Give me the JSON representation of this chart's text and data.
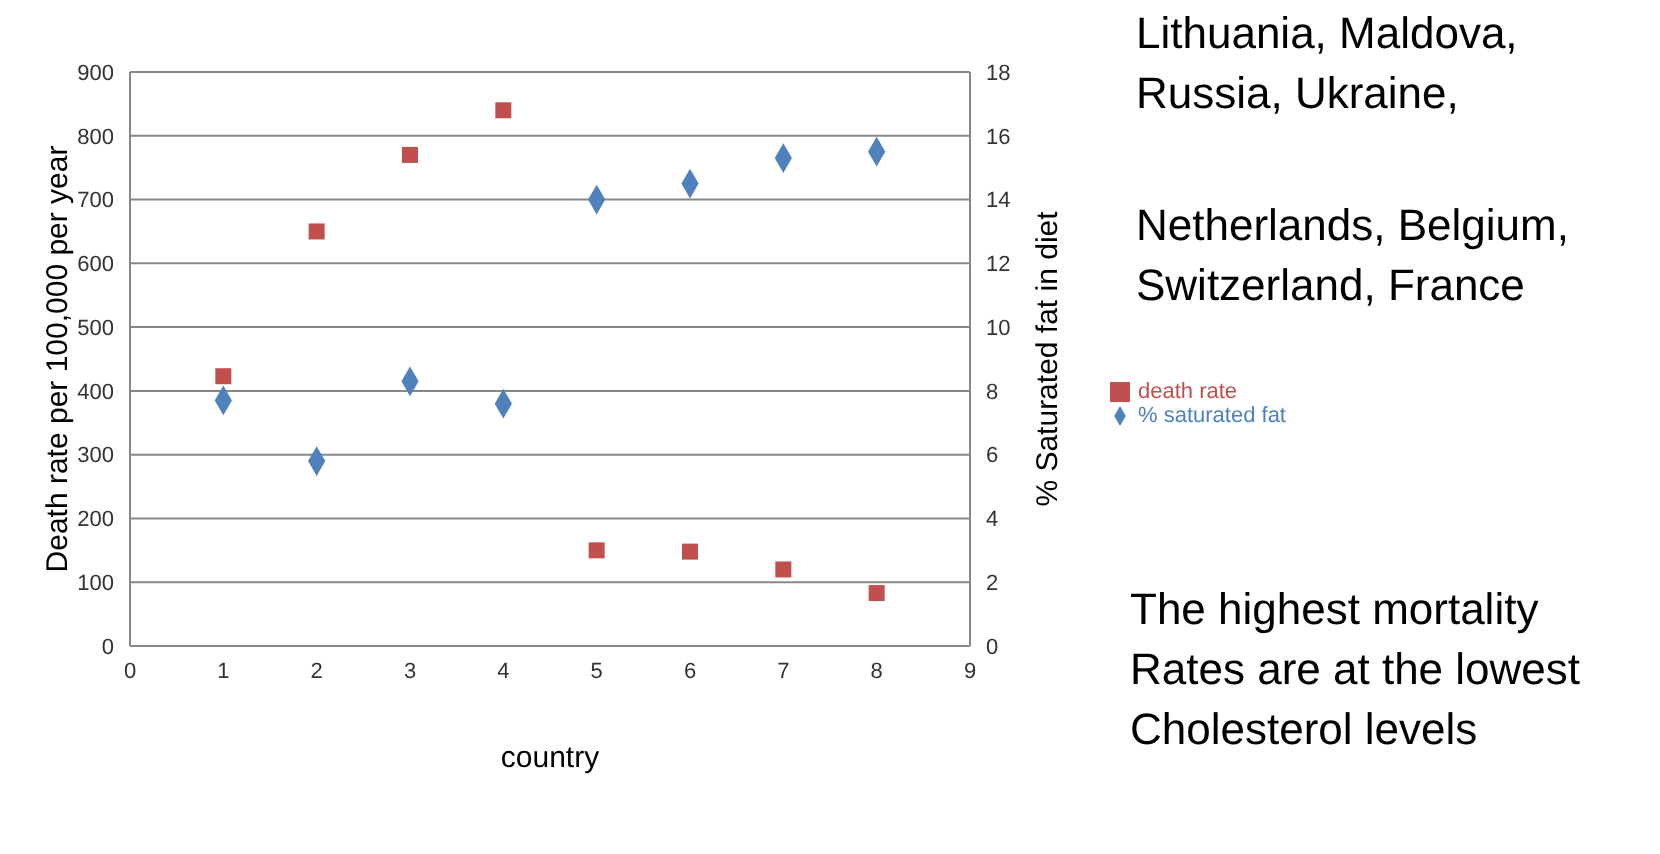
{
  "chart_data": {
    "type": "scatter",
    "xlabel": "country",
    "ylabel": "Death rate per 100,000 per year",
    "y2label": "% Saturated fat in diet",
    "x": [
      1,
      2,
      3,
      4,
      5,
      6,
      7,
      8
    ],
    "series": [
      {
        "name": "death rate",
        "color": "#c0504d",
        "marker": "square",
        "values": [
          423,
          650,
          770,
          840,
          150,
          148,
          120,
          83
        ]
      },
      {
        "name": "% saturated fat",
        "color": "#4f81bd",
        "marker": "diamond",
        "axis": "y2",
        "values": [
          7.7,
          5.8,
          8.3,
          7.6,
          14,
          14.5,
          15.3,
          15.5
        ]
      }
    ],
    "xlim": [
      0,
      9
    ],
    "xticks": [
      0,
      1,
      2,
      3,
      4,
      5,
      6,
      7,
      8,
      9
    ],
    "ylim": [
      0,
      900
    ],
    "yticks": [
      0,
      100,
      200,
      300,
      400,
      500,
      600,
      700,
      800,
      900
    ],
    "y2lim": [
      0,
      18
    ],
    "y2ticks": [
      0,
      2,
      4,
      6,
      8,
      10,
      12,
      14,
      16,
      18
    ],
    "grid": "y",
    "legend": "right",
    "annotations": [
      "Lithuania, Maldova, Russia, Ukraine,",
      "Netherlands, Belgium, Switzerland, France",
      "The highest mortality Rates are at the lowest Cholesterol levels"
    ]
  }
}
